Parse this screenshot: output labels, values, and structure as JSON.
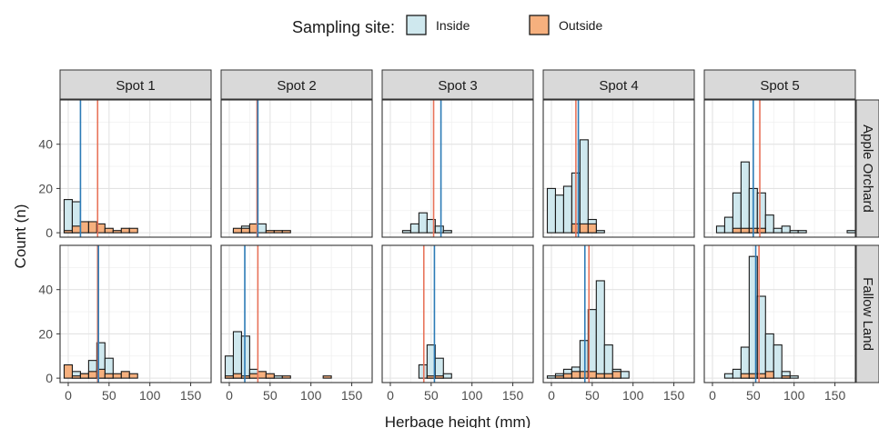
{
  "chart_data": {
    "type": "histogram",
    "legend": {
      "title": "Sampling site:",
      "entries": [
        {
          "label": "Inside",
          "color": "#cfe8ee"
        },
        {
          "label": "Outside",
          "color": "#f6b07e"
        }
      ],
      "placement": "top-center"
    },
    "xlabel": "Herbage height (mm)",
    "ylabel": "Count (n)",
    "xlim": [
      -10,
      175
    ],
    "ylim": [
      -2,
      60
    ],
    "xticks": [
      "0",
      "50",
      "100",
      "150"
    ],
    "yticks": [
      "0",
      "20",
      "40"
    ],
    "bin_width": 10,
    "bin_starts": [
      -5,
      5,
      15,
      25,
      35,
      45,
      55,
      65,
      75,
      85,
      95,
      105,
      115,
      125,
      135,
      145,
      155,
      165
    ],
    "columns": [
      "Spot 1",
      "Spot 2",
      "Spot 3",
      "Spot 4",
      "Spot 5"
    ],
    "rows": [
      "Apple Orchard",
      "Fallow Land"
    ],
    "grid": true,
    "colors": {
      "inside_fill": "#cfe8ee",
      "outside_fill": "#f6b07e",
      "inside_line": "#2c7bb6",
      "outside_line": "#e8735a",
      "strip_bg": "#d9d9d9"
    },
    "panels": [
      {
        "row": "Apple Orchard",
        "col": "Spot 1",
        "inside": [
          15,
          14,
          0,
          0,
          0,
          0,
          0,
          0,
          0,
          0,
          0,
          0,
          0,
          0,
          0,
          0,
          0,
          0
        ],
        "outside": [
          1,
          3,
          5,
          5,
          4,
          2,
          1,
          2,
          2,
          0,
          0,
          0,
          0,
          0,
          0,
          0,
          0,
          0
        ],
        "inside_mean": 15,
        "outside_mean": 36
      },
      {
        "row": "Apple Orchard",
        "col": "Spot 2",
        "inside": [
          0,
          1,
          3,
          3,
          4,
          0,
          0,
          0,
          0,
          0,
          0,
          0,
          0,
          0,
          0,
          0,
          0,
          0
        ],
        "outside": [
          0,
          2,
          2,
          4,
          0,
          1,
          1,
          1,
          0,
          0,
          0,
          0,
          0,
          0,
          0,
          0,
          0,
          0
        ],
        "inside_mean": 35,
        "outside_mean": 34
      },
      {
        "row": "Apple Orchard",
        "col": "Spot 3",
        "inside": [
          0,
          0,
          1,
          4,
          9,
          6,
          3,
          1,
          0,
          0,
          0,
          0,
          0,
          0,
          0,
          0,
          0,
          0
        ],
        "outside": [
          0,
          0,
          0,
          0,
          0,
          0,
          0,
          0,
          0,
          0,
          0,
          0,
          0,
          0,
          0,
          0,
          0,
          0
        ],
        "inside_mean": 62,
        "outside_mean": 53
      },
      {
        "row": "Apple Orchard",
        "col": "Spot 4",
        "inside": [
          20,
          17,
          21,
          27,
          42,
          6,
          1,
          0,
          0,
          0,
          0,
          0,
          0,
          0,
          0,
          0,
          0,
          0
        ],
        "outside": [
          0,
          0,
          0,
          4,
          4,
          4,
          0,
          0,
          0,
          0,
          0,
          0,
          0,
          0,
          0,
          0,
          0,
          0
        ],
        "inside_mean": 33,
        "outside_mean": 30
      },
      {
        "row": "Apple Orchard",
        "col": "Spot 5",
        "inside": [
          0,
          3,
          7,
          18,
          32,
          20,
          18,
          8,
          2,
          3,
          1,
          1,
          0,
          0,
          0,
          0,
          0,
          1
        ],
        "outside": [
          0,
          0,
          0,
          2,
          2,
          2,
          2,
          0,
          0,
          0,
          0,
          0,
          0,
          0,
          0,
          0,
          0,
          0
        ],
        "inside_mean": 50,
        "outside_mean": 58
      },
      {
        "row": "Fallow Land",
        "col": "Spot 1",
        "inside": [
          0,
          3,
          2,
          8,
          16,
          9,
          0,
          0,
          0,
          0,
          0,
          0,
          0,
          0,
          0,
          0,
          0,
          0
        ],
        "outside": [
          6,
          1,
          2,
          3,
          4,
          2,
          2,
          3,
          2,
          0,
          0,
          0,
          0,
          0,
          0,
          0,
          0,
          0
        ],
        "inside_mean": 37,
        "outside_mean": 36
      },
      {
        "row": "Fallow Land",
        "col": "Spot 2",
        "inside": [
          10,
          21,
          19,
          4,
          0,
          1,
          1,
          0,
          0,
          0,
          0,
          0,
          0,
          0,
          0,
          0,
          0,
          0
        ],
        "outside": [
          1,
          2,
          1,
          2,
          3,
          2,
          0,
          1,
          0,
          0,
          0,
          0,
          1,
          0,
          0,
          0,
          0,
          0
        ],
        "inside_mean": 19,
        "outside_mean": 35
      },
      {
        "row": "Fallow Land",
        "col": "Spot 3",
        "inside": [
          0,
          0,
          0,
          0,
          6,
          15,
          9,
          2,
          0,
          0,
          0,
          0,
          0,
          0,
          0,
          0,
          0,
          0
        ],
        "outside": [
          0,
          0,
          0,
          0,
          0,
          1,
          1,
          0,
          0,
          0,
          0,
          0,
          0,
          0,
          0,
          0,
          0,
          0
        ],
        "inside_mean": 54,
        "outside_mean": 41
      },
      {
        "row": "Fallow Land",
        "col": "Spot 4",
        "inside": [
          1,
          2,
          4,
          5,
          17,
          31,
          44,
          15,
          4,
          3,
          0,
          0,
          0,
          0,
          0,
          0,
          0,
          0
        ],
        "outside": [
          0,
          1,
          2,
          3,
          3,
          3,
          2,
          2,
          3,
          0,
          0,
          0,
          0,
          0,
          0,
          0,
          0,
          0
        ],
        "inside_mean": 41,
        "outside_mean": 46
      },
      {
        "row": "Fallow Land",
        "col": "Spot 5",
        "inside": [
          0,
          0,
          2,
          4,
          14,
          55,
          37,
          20,
          15,
          3,
          1,
          0,
          0,
          0,
          0,
          0,
          0,
          0
        ],
        "outside": [
          0,
          0,
          0,
          0,
          2,
          2,
          2,
          3,
          0,
          1,
          0,
          0,
          0,
          0,
          0,
          0,
          0,
          0
        ],
        "inside_mean": 53,
        "outside_mean": 57
      }
    ]
  }
}
